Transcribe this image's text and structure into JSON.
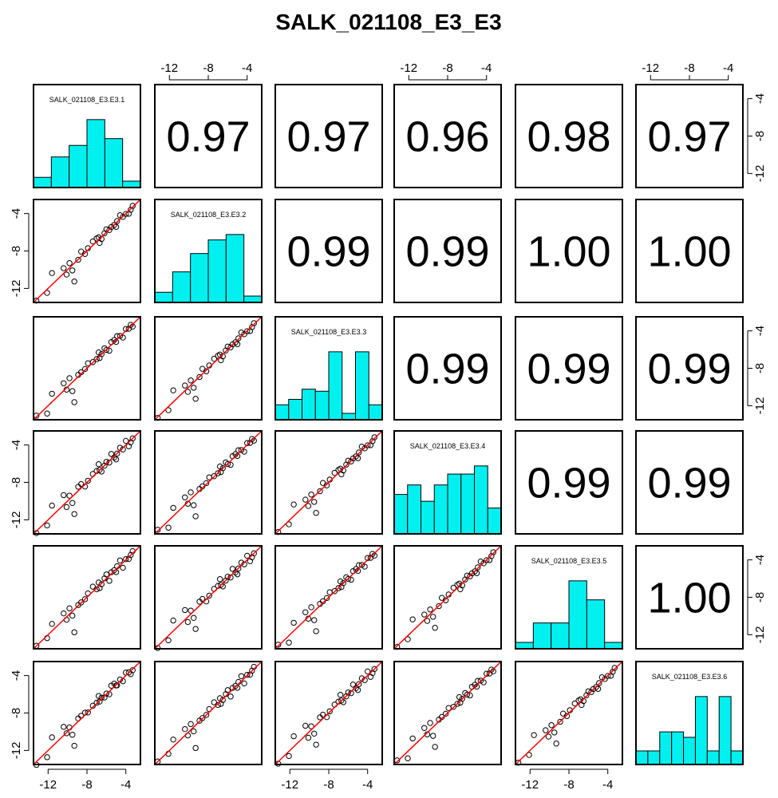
{
  "title": "SALK_021108_E3_E3",
  "chart_data": {
    "type": "scatter",
    "title": "SALK_021108_E3_E3",
    "variables": [
      "SALK_021108_E3.E3.1",
      "SALK_021108_E3.E3.2",
      "SALK_021108_E3.E3.3",
      "SALK_021108_E3.E3.4",
      "SALK_021108_E3.E3.5",
      "SALK_021108_E3.E3.6"
    ],
    "diagonal_labels": [
      "SALK_021108_E3.E3.1",
      "SALK_021108_E3.E3.2",
      "SALK_021108_E3.E3.3",
      "SALK_021108_E3.E3.4",
      "SALK_021108_E3.E3.5",
      "SALK_021108_E3.E3.6"
    ],
    "axis_range": [
      -13.5,
      -2.5
    ],
    "tick_values": [
      -12,
      -8,
      -4
    ],
    "tick_labels": [
      "-12",
      "-8",
      "-4"
    ],
    "correlations": [
      [
        null,
        "0.97",
        "0.97",
        "0.96",
        "0.98",
        "0.97"
      ],
      [
        null,
        null,
        "0.99",
        "0.99",
        "1.00",
        "1.00"
      ],
      [
        null,
        null,
        null,
        "0.99",
        "0.99",
        "0.99"
      ],
      [
        null,
        null,
        null,
        null,
        "0.99",
        "0.99"
      ],
      [
        null,
        null,
        null,
        null,
        null,
        "1.00"
      ],
      [
        null,
        null,
        null,
        null,
        null,
        null
      ]
    ],
    "histograms": [
      [
        0.15,
        0.45,
        0.62,
        1.0,
        0.72,
        0.0
      ],
      [
        0.15,
        0.45,
        0.72,
        0.92,
        1.0,
        0.0
      ],
      [
        0.22,
        0.3,
        0.45,
        0.42,
        1.0,
        0.0,
        1.0,
        0.22
      ],
      [
        0.58,
        0.72,
        0.48,
        0.72,
        0.88,
        0.88,
        1.0,
        0.38
      ],
      [
        0.0,
        0.38,
        0.38,
        1.0,
        0.72,
        0.0
      ],
      [
        0.2,
        0.2,
        0.48,
        0.48,
        0.4,
        1.0,
        0.2,
        1.0,
        0.2
      ]
    ],
    "points": [
      [
        -13.2,
        -13.3
      ],
      [
        -12.1,
        -12.6
      ],
      [
        -11.6,
        -10.6
      ],
      [
        -10.4,
        -9.6
      ],
      [
        -10.1,
        -10.4
      ],
      [
        -9.8,
        -9.3
      ],
      [
        -9.5,
        -10.2
      ],
      [
        -9.3,
        -11.5
      ],
      [
        -8.9,
        -8.7
      ],
      [
        -8.2,
        -8.2
      ],
      [
        -7.9,
        -7.7
      ],
      [
        -7.4,
        -7.1
      ],
      [
        -7.0,
        -6.9
      ],
      [
        -6.8,
        -6.3
      ],
      [
        -6.5,
        -6.6
      ],
      [
        -6.2,
        -6.1
      ],
      [
        -6.0,
        -5.8
      ],
      [
        -5.7,
        -6.0
      ],
      [
        -5.5,
        -5.2
      ],
      [
        -5.2,
        -5.1
      ],
      [
        -4.9,
        -4.8
      ],
      [
        -4.6,
        -4.3
      ],
      [
        -4.3,
        -4.6
      ],
      [
        -4.0,
        -3.8
      ],
      [
        -3.7,
        -3.9
      ],
      [
        -3.5,
        -3.6
      ],
      [
        -3.3,
        -3.3
      ],
      [
        -8.6,
        -8.3
      ],
      [
        -6.7,
        -6.9
      ],
      [
        -5.0,
        -5.3
      ]
    ],
    "fit_line_color": "#ff0000",
    "histogram_color": "#00f0f0",
    "point_color": "#000000",
    "grid": false
  }
}
